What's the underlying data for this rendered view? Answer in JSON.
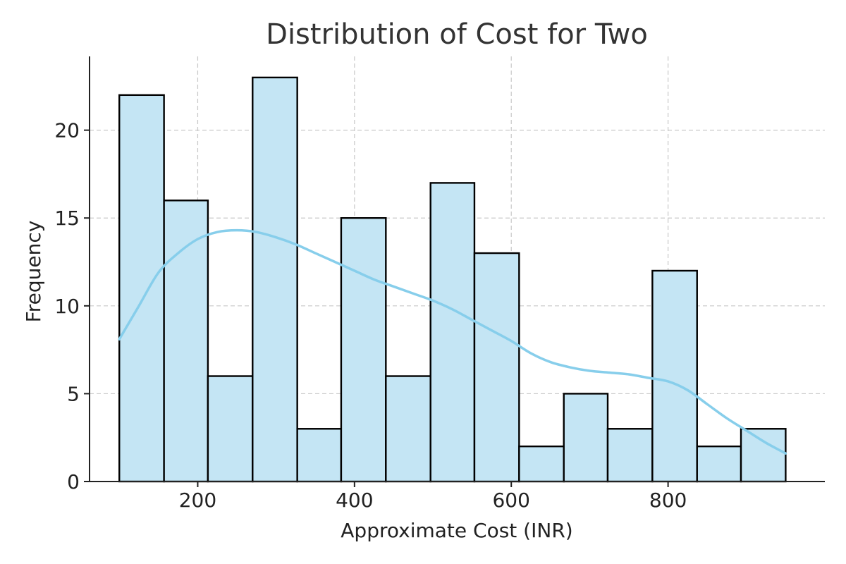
{
  "chart_data": {
    "type": "bar",
    "subtype": "histogram-with-kde",
    "title": "Distribution of Cost for Two",
    "xlabel": "Approximate Cost (INR)",
    "ylabel": "Frequency",
    "xlim": [
      62,
      1000
    ],
    "ylim": [
      0,
      24.2
    ],
    "xticks": [
      200,
      400,
      600,
      800
    ],
    "yticks": [
      0,
      5,
      10,
      15,
      20
    ],
    "grid": true,
    "bins": [
      {
        "x0": 100,
        "x1": 157,
        "count": 22
      },
      {
        "x0": 157,
        "x1": 213,
        "count": 16
      },
      {
        "x0": 213,
        "x1": 270,
        "count": 6
      },
      {
        "x0": 270,
        "x1": 327,
        "count": 23
      },
      {
        "x0": 327,
        "x1": 383,
        "count": 3
      },
      {
        "x0": 383,
        "x1": 440,
        "count": 15
      },
      {
        "x0": 440,
        "x1": 497,
        "count": 6
      },
      {
        "x0": 497,
        "x1": 553,
        "count": 17
      },
      {
        "x0": 553,
        "x1": 610,
        "count": 13
      },
      {
        "x0": 610,
        "x1": 667,
        "count": 2
      },
      {
        "x0": 667,
        "x1": 723,
        "count": 5
      },
      {
        "x0": 723,
        "x1": 780,
        "count": 3
      },
      {
        "x0": 780,
        "x1": 837,
        "count": 12
      },
      {
        "x0": 837,
        "x1": 893,
        "count": 2
      },
      {
        "x0": 893,
        "x1": 950,
        "count": 3
      }
    ],
    "kde": {
      "x": [
        100,
        125,
        150,
        175,
        200,
        225,
        250,
        275,
        300,
        325,
        350,
        375,
        400,
        425,
        450,
        475,
        500,
        525,
        550,
        575,
        600,
        625,
        650,
        675,
        700,
        725,
        750,
        775,
        800,
        825,
        850,
        875,
        900,
        925,
        950
      ],
      "y": [
        8.1,
        10.0,
        11.9,
        13.0,
        13.8,
        14.2,
        14.3,
        14.2,
        13.9,
        13.5,
        13.0,
        12.5,
        12.0,
        11.5,
        11.1,
        10.7,
        10.3,
        9.8,
        9.2,
        8.6,
        8.0,
        7.3,
        6.8,
        6.5,
        6.3,
        6.2,
        6.1,
        5.9,
        5.7,
        5.2,
        4.4,
        3.6,
        2.9,
        2.2,
        1.6
      ]
    },
    "colors": {
      "bar_fill": "#c4e5f4",
      "bar_edge": "#000000",
      "kde_line": "#87ceeb",
      "grid": "#c8c8c8",
      "axis": "#222222",
      "text": "#222222"
    }
  }
}
